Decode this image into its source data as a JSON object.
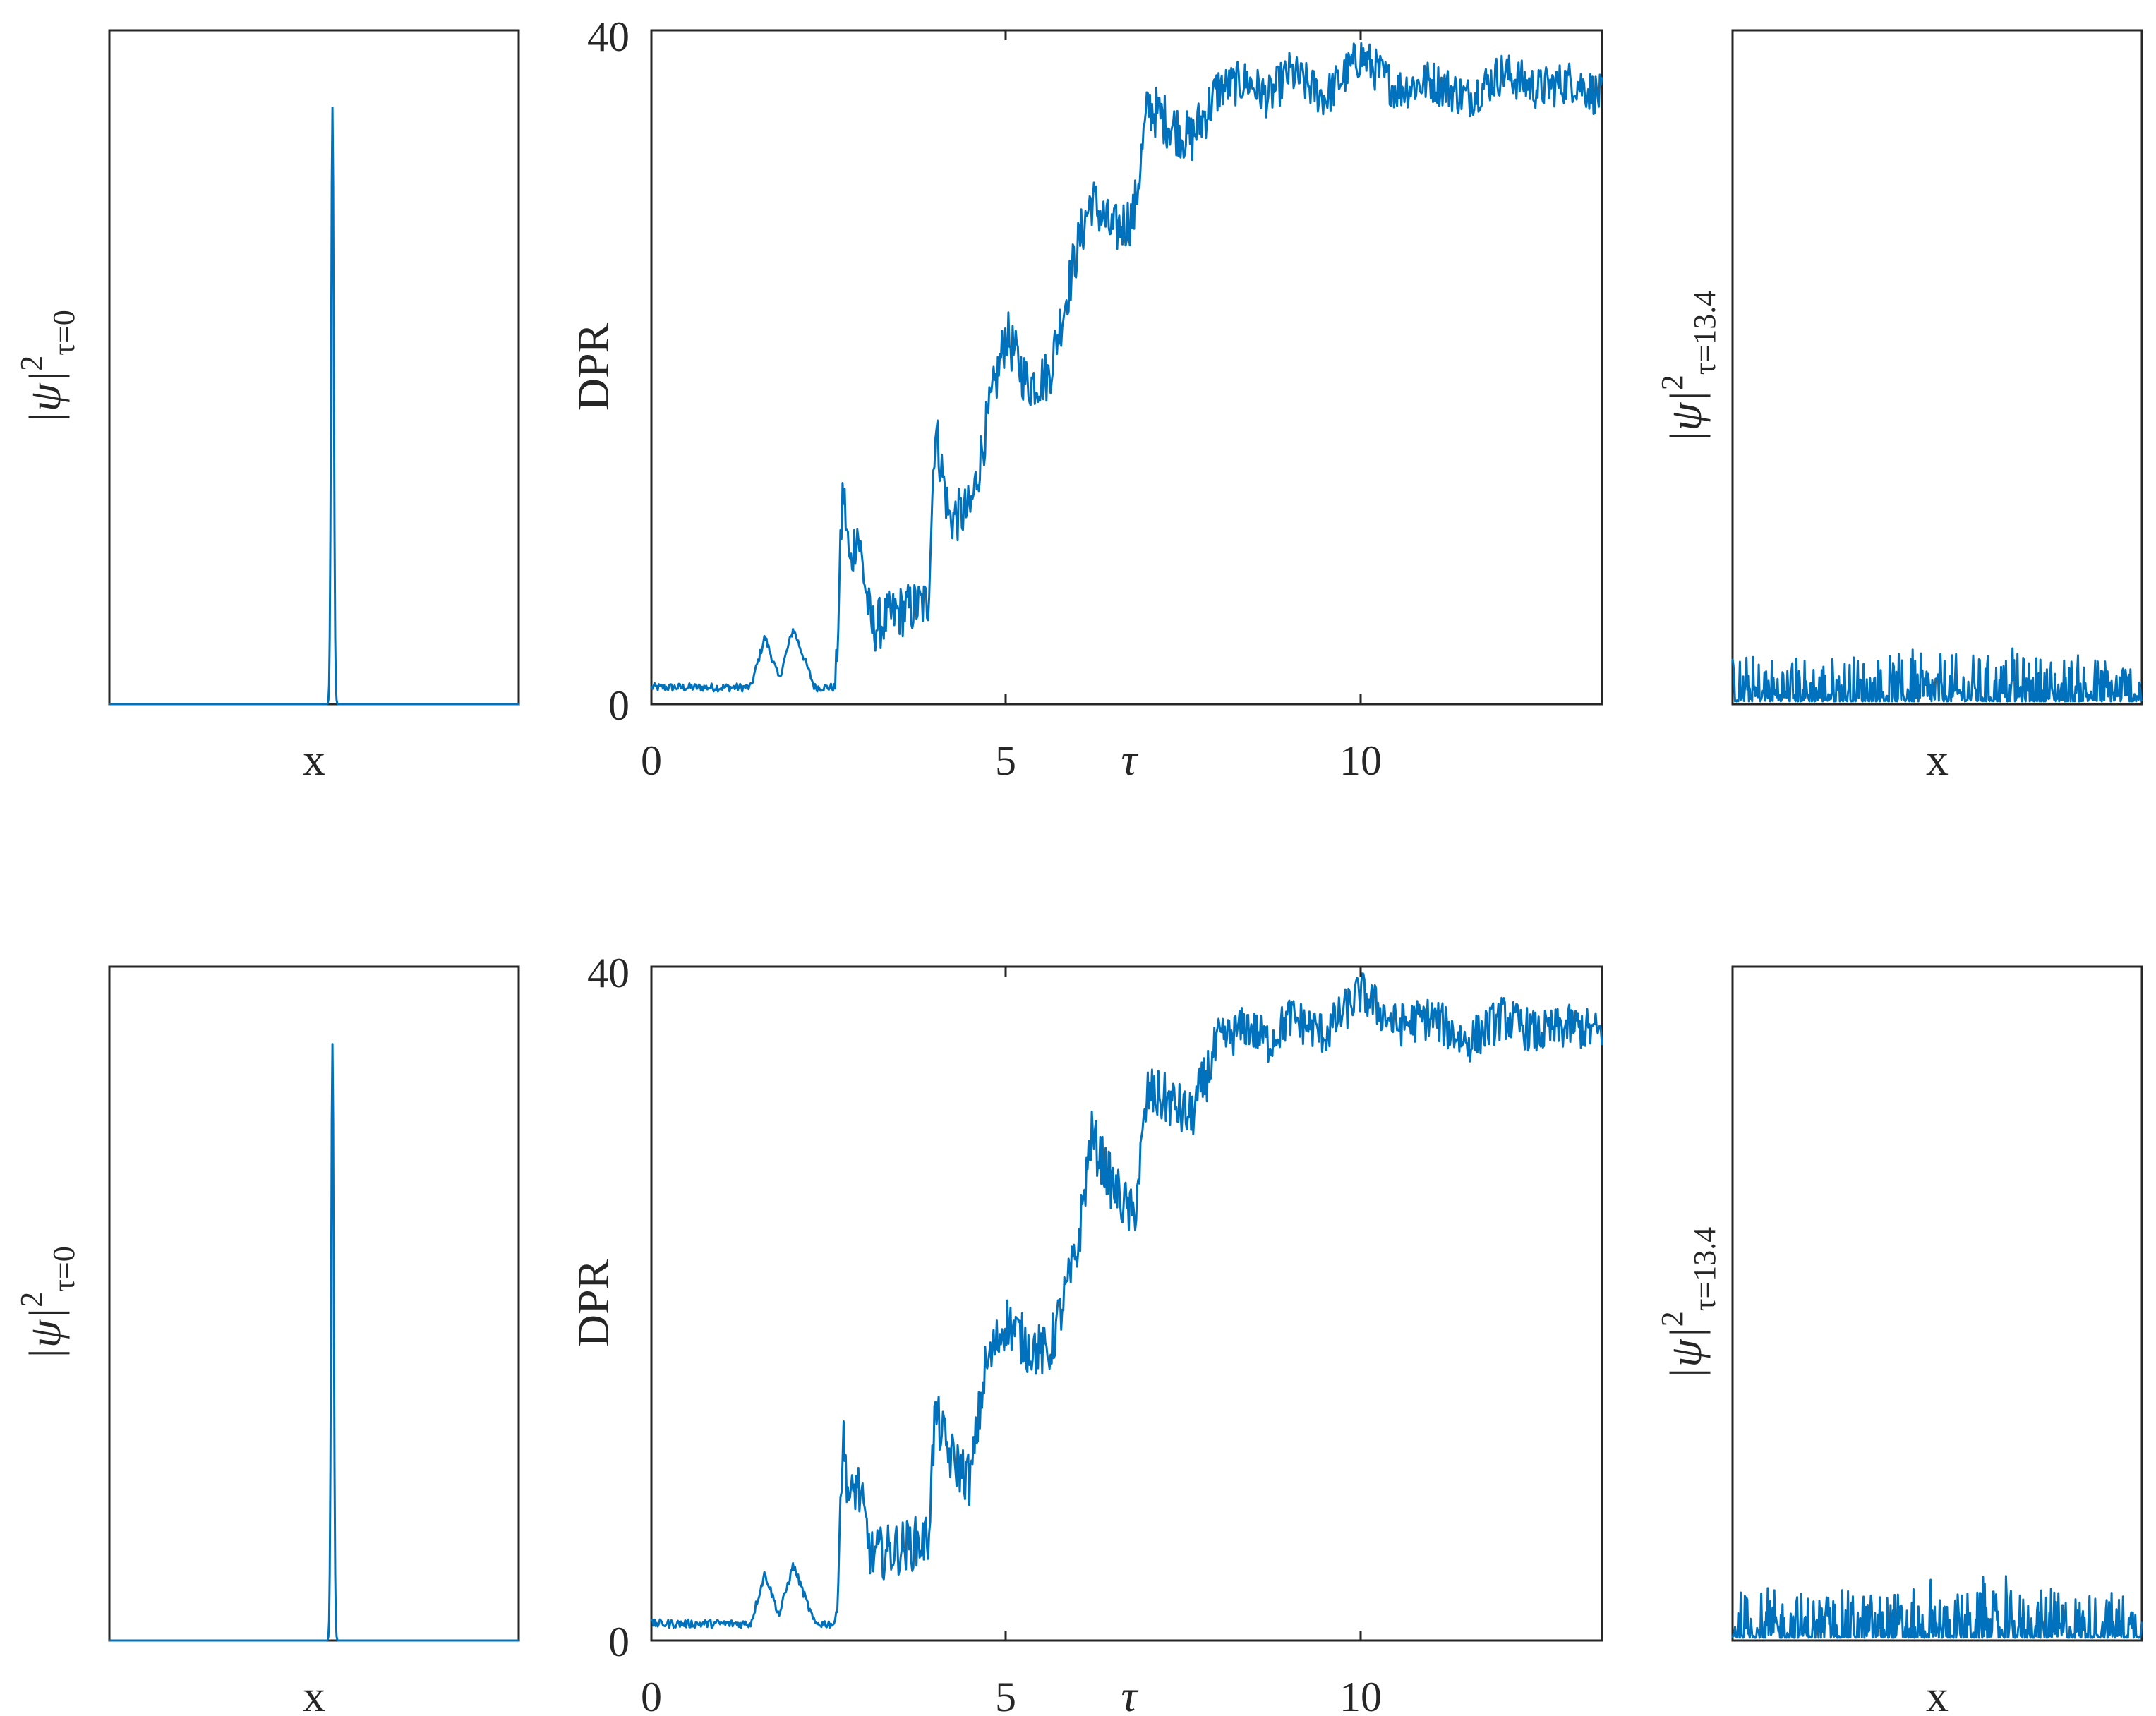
{
  "colors": {
    "trace": "#0072BD",
    "axes": "#262626",
    "background": "#ffffff"
  },
  "labels": {
    "x": "x",
    "tau": "τ",
    "dpr": "DPR",
    "psi_t0": {
      "main": "|ψ|",
      "sup": "2",
      "sub": "τ=0"
    },
    "psi_t134": {
      "main": "|ψ|",
      "sup": "2",
      "sub": "τ=13.4"
    }
  },
  "chart_data": [
    {
      "id": "top-left",
      "type": "line",
      "title": "",
      "xlabel": "x",
      "ylabel": "|ψ|²|τ=0",
      "description_values": {
        "peak_center_fraction": 0.545,
        "peak_height_fraction": 0.885
      }
    },
    {
      "id": "top-middle",
      "type": "line",
      "title": "",
      "xlabel": "τ",
      "ylabel": "DPR",
      "xlim": [
        0,
        13.4
      ],
      "ylim": [
        0,
        40
      ],
      "xticks": [
        "0",
        "5",
        "10"
      ],
      "yticks": [
        "0",
        "40"
      ],
      "x": [
        0,
        0.5,
        1.0,
        1.4,
        1.6,
        1.8,
        2.0,
        2.3,
        2.6,
        2.7,
        2.8,
        2.9,
        3.1,
        3.5,
        3.9,
        4.0,
        4.2,
        4.5,
        4.7,
        5.0,
        5.3,
        5.6,
        6.0,
        6.2,
        6.5,
        6.8,
        7.0,
        7.3,
        7.6,
        8.0,
        8.4,
        8.7,
        9.0,
        9.5,
        10.0,
        10.5,
        11.0,
        11.5,
        12.0,
        12.5,
        13.0,
        13.4
      ],
      "values": [
        1.0,
        1.0,
        1.0,
        1.0,
        4.0,
        1.5,
        4.5,
        1.0,
        1.0,
        13.0,
        8.0,
        10.5,
        4.5,
        5.5,
        6.0,
        16.5,
        11.0,
        11.5,
        16.0,
        22.0,
        19.0,
        19.5,
        27.0,
        30.0,
        28.0,
        29.0,
        35.5,
        34.5,
        33.5,
        36.5,
        37.0,
        36.0,
        37.5,
        36.0,
        38.5,
        36.5,
        37.0,
        36.0,
        37.5,
        36.5,
        37.0,
        36.0
      ]
    },
    {
      "id": "top-right",
      "type": "line",
      "title": "",
      "xlabel": "x",
      "ylabel": "|ψ|²|τ=13.4",
      "description_values": {
        "noise_max_fraction": 0.095
      }
    },
    {
      "id": "bottom-left",
      "type": "line",
      "title": "",
      "xlabel": "x",
      "ylabel": "|ψ|²|τ=0",
      "description_values": {
        "peak_center_fraction": 0.545,
        "peak_height_fraction": 0.885
      }
    },
    {
      "id": "bottom-middle",
      "type": "line",
      "title": "",
      "xlabel": "τ",
      "ylabel": "DPR",
      "xlim": [
        0,
        13.4
      ],
      "ylim": [
        0,
        40
      ],
      "xticks": [
        "0",
        "5",
        "10"
      ],
      "yticks": [
        "0",
        "40"
      ],
      "x": [
        0,
        0.5,
        1.0,
        1.4,
        1.6,
        1.8,
        2.0,
        2.3,
        2.6,
        2.7,
        2.8,
        2.9,
        3.1,
        3.5,
        3.9,
        4.0,
        4.2,
        4.5,
        4.7,
        5.0,
        5.3,
        5.6,
        6.0,
        6.2,
        6.5,
        6.8,
        7.0,
        7.3,
        7.6,
        8.0,
        8.4,
        8.7,
        9.0,
        9.5,
        10.0,
        10.5,
        11.0,
        11.5,
        12.0,
        12.5,
        13.0,
        13.4
      ],
      "values": [
        1.0,
        1.0,
        1.0,
        1.0,
        4.0,
        1.5,
        4.5,
        1.0,
        1.0,
        12.0,
        8.0,
        9.5,
        5.0,
        5.5,
        6.0,
        13.5,
        11.0,
        9.5,
        16.0,
        19.0,
        17.5,
        17.0,
        23.0,
        30.0,
        27.0,
        25.0,
        32.5,
        32.0,
        31.0,
        35.5,
        36.5,
        35.5,
        37.0,
        36.0,
        38.5,
        36.5,
        37.0,
        35.5,
        37.0,
        36.0,
        36.5,
        36.0
      ]
    },
    {
      "id": "bottom-right",
      "type": "line",
      "title": "",
      "xlabel": "x",
      "ylabel": "|ψ|²|τ=13.4",
      "description_values": {
        "noise_max_fraction": 0.095
      }
    }
  ]
}
